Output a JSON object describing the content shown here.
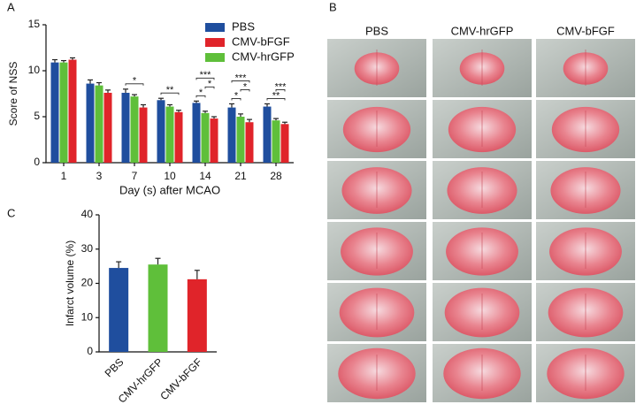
{
  "chart_data": [
    {
      "type": "bar",
      "panel_label": "A",
      "ylabel": "Score of NSS",
      "xlabel": "Day (s) after MCAO",
      "categories": [
        "1",
        "3",
        "7",
        "10",
        "14",
        "21",
        "28"
      ],
      "series": [
        {
          "name": "PBS",
          "color": "#1f4e9e",
          "values": [
            10.9,
            8.6,
            7.6,
            6.8,
            6.5,
            6.0,
            6.1
          ],
          "errors": [
            0.3,
            0.4,
            0.4,
            0.2,
            0.2,
            0.4,
            0.3
          ]
        },
        {
          "name": "CMV-hrGFP",
          "color": "#5fbf3a",
          "values": [
            10.9,
            8.4,
            7.2,
            6.1,
            5.4,
            5.0,
            4.6
          ],
          "errors": [
            0.2,
            0.3,
            0.2,
            0.2,
            0.2,
            0.3,
            0.2
          ]
        },
        {
          "name": "CMV-bFGF",
          "color": "#e0242a",
          "values": [
            11.2,
            7.6,
            6.0,
            5.5,
            4.8,
            4.4,
            4.2
          ],
          "errors": [
            0.2,
            0.3,
            0.3,
            0.2,
            0.2,
            0.3,
            0.2
          ]
        }
      ],
      "legend_order": [
        0,
        2,
        1
      ],
      "significance": [
        [],
        [],
        [
          "*"
        ],
        [
          "**"
        ],
        [
          "*",
          "*",
          "***"
        ],
        [
          "*",
          "*",
          "***"
        ],
        [
          "**",
          "***"
        ]
      ],
      "ylim": [
        0,
        15
      ],
      "yticks": [
        0,
        5,
        10,
        15
      ]
    },
    {
      "type": "bar",
      "panel_label": "C",
      "ylabel": "Infarct volume (%)",
      "categories": [
        "PBS",
        "CMV-hrGFP",
        "CMV-bFGF"
      ],
      "values": [
        24.5,
        25.5,
        21.2
      ],
      "errors": [
        1.8,
        1.8,
        2.6
      ],
      "colors": [
        "#1f4e9e",
        "#5fbf3a",
        "#e0242a"
      ],
      "ylim": [
        0,
        40
      ],
      "yticks": [
        0,
        10,
        20,
        30,
        40
      ]
    }
  ],
  "image_panel": {
    "panel_label": "B",
    "columns": [
      "PBS",
      "CMV-hrGFP",
      "CMV-bFGF"
    ]
  }
}
